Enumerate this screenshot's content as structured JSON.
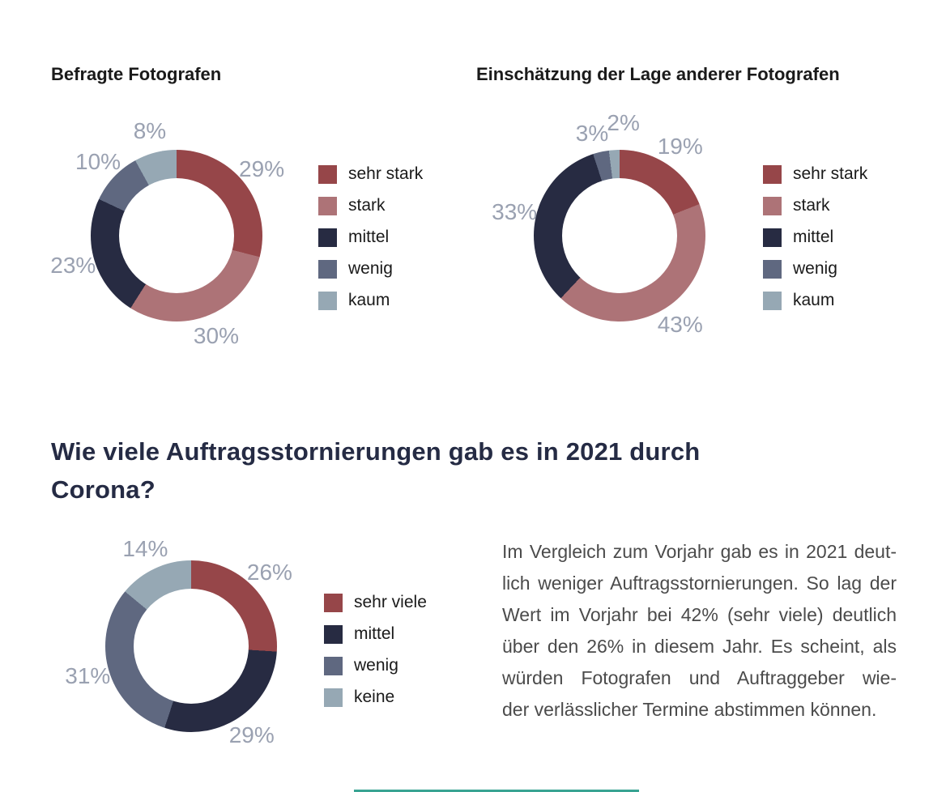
{
  "palette": {
    "sehr_stark_red": "#964649",
    "stark_rose": "#ad7377",
    "mittel_navy": "#272b42",
    "wenig_slate": "#5f6880",
    "kaum_bluegray": "#96a8b4",
    "percent_label_gray": "#9aa1b1",
    "title_black": "#1a1a1a",
    "heading_navy": "#252b44",
    "body_text_gray": "#4b4b4b",
    "accent_teal": "#38a392"
  },
  "chart_data": [
    {
      "type": "donut",
      "title": "Befragte Fotografen",
      "categories": [
        "sehr stark",
        "stark",
        "mittel",
        "wenig",
        "kaum"
      ],
      "values": [
        29,
        30,
        23,
        10,
        8
      ],
      "value_labels": [
        "29%",
        "30%",
        "23%",
        "10%",
        "8%"
      ],
      "colors": [
        "#964649",
        "#ad7377",
        "#272b42",
        "#5f6880",
        "#96a8b4"
      ],
      "legend_position": "right",
      "start_angle_deg": 0,
      "direction": "clockwise"
    },
    {
      "type": "donut",
      "title": "Einschätzung der Lage anderer Fotografen",
      "categories": [
        "sehr stark",
        "stark",
        "mittel",
        "wenig",
        "kaum"
      ],
      "values": [
        19,
        43,
        33,
        3,
        2
      ],
      "value_labels": [
        "19%",
        "43%",
        "33%",
        "3%",
        "2%"
      ],
      "colors": [
        "#964649",
        "#ad7377",
        "#272b42",
        "#5f6880",
        "#96a8b4"
      ],
      "legend_position": "right",
      "start_angle_deg": 0,
      "direction": "clockwise"
    },
    {
      "type": "donut",
      "title": "Wie viele Auftragsstornierungen gab es in 2021 durch Corona?",
      "categories": [
        "sehr viele",
        "mittel",
        "wenig",
        "keine"
      ],
      "values": [
        26,
        29,
        31,
        14
      ],
      "value_labels": [
        "26%",
        "29%",
        "31%",
        "14%"
      ],
      "colors": [
        "#964649",
        "#272b42",
        "#5f6880",
        "#96a8b4"
      ],
      "legend_position": "right",
      "start_angle_deg": 0,
      "direction": "clockwise"
    }
  ],
  "heading": {
    "line1": "Wie viele Auftragsstornierungen gab es in 2021 durch",
    "line2": "Corona?"
  },
  "body": {
    "lines": [
      "Im Vergleich zum Vorjahr gab es in 2021 deut-",
      "lich weniger Auftragsstornierungen. So lag der",
      "Wert im Vorjahr bei 42% (sehr viele) deutlich",
      "über den 26% in diesem Jahr. Es scheint, als",
      "würden Fotografen und Auftraggeber wie-",
      "der verlässlicher Termine abstimmen können."
    ]
  }
}
